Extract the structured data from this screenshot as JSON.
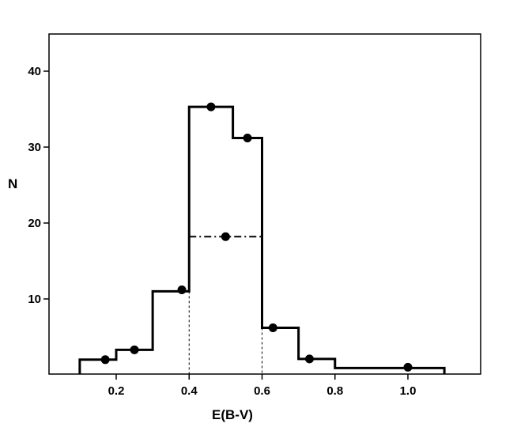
{
  "chart_data": {
    "type": "histogram",
    "xlabel": "E(B-V)",
    "ylabel": "N",
    "xlim": [
      0.0,
      1.2
    ],
    "ylim": [
      0,
      45
    ],
    "x_ticks": [
      {
        "value": 0.2,
        "label": "0.2"
      },
      {
        "value": 0.4,
        "label": "0.4"
      },
      {
        "value": 0.6,
        "label": "0.6"
      },
      {
        "value": 0.8,
        "label": "0.8"
      },
      {
        "value": 1.0,
        "label": "1.0"
      }
    ],
    "y_ticks": [
      {
        "value": 10,
        "label": "10"
      },
      {
        "value": 20,
        "label": "20"
      },
      {
        "value": 30,
        "label": "30"
      },
      {
        "value": 40,
        "label": "40"
      }
    ],
    "bins": [
      {
        "x0": 0.1,
        "x1": 0.2,
        "value": 2
      },
      {
        "x0": 0.2,
        "x1": 0.3,
        "value": 3.3
      },
      {
        "x0": 0.3,
        "x1": 0.4,
        "value": 11
      },
      {
        "x0": 0.4,
        "x1": 0.52,
        "value": 35.3
      },
      {
        "x0": 0.52,
        "x1": 0.6,
        "value": 31.2
      },
      {
        "x0": 0.6,
        "x1": 0.7,
        "value": 6.2
      },
      {
        "x0": 0.7,
        "x1": 0.8,
        "value": 2.1
      },
      {
        "x0": 0.8,
        "x1": 1.1,
        "value": 0.9
      }
    ],
    "points": [
      {
        "x": 0.17,
        "y": 2.0
      },
      {
        "x": 0.25,
        "y": 3.3
      },
      {
        "x": 0.38,
        "y": 11.2
      },
      {
        "x": 0.46,
        "y": 35.3
      },
      {
        "x": 0.56,
        "y": 31.2
      },
      {
        "x": 0.63,
        "y": 6.2
      },
      {
        "x": 0.73,
        "y": 2.1
      },
      {
        "x": 1.0,
        "y": 1.0
      }
    ],
    "mean_bin": {
      "x0": 0.4,
      "x1": 0.6,
      "value": 18.2,
      "point_x": 0.5
    },
    "colors": {
      "line": "#000000",
      "background": "#ffffff"
    }
  }
}
